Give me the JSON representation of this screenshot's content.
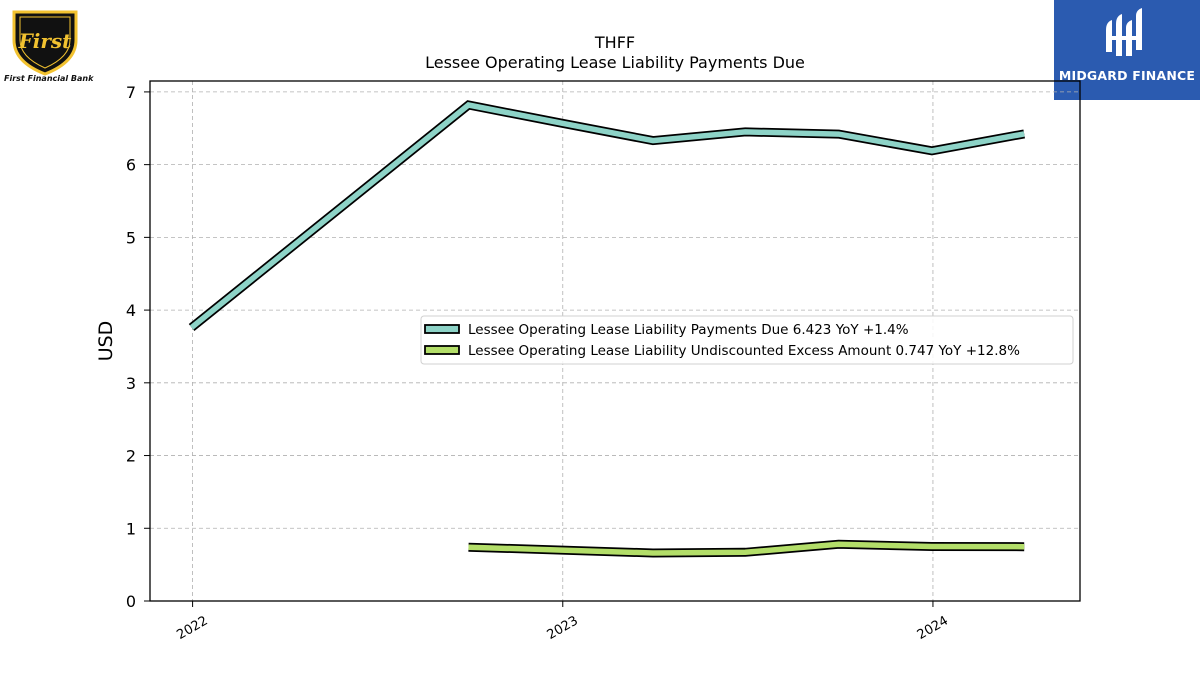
{
  "logos": {
    "left": {
      "script": "First",
      "caption": "First Financial Bank"
    },
    "right": {
      "name": "MIDGARD FINANCE"
    }
  },
  "colors": {
    "series_payments": "#8dd3c7",
    "series_excess": "#b3de69",
    "midgard_bg": "#2b5bb0",
    "shield_gold": "#f2c230",
    "shield_black": "#111111"
  },
  "chart_data": {
    "type": "line",
    "title": "THFF",
    "subtitle": "Lessee Operating Lease Liability Payments Due",
    "ylabel": "USD",
    "xlabel": "",
    "ylim": [
      0,
      7.15
    ],
    "yticks": [
      0,
      1,
      2,
      3,
      4,
      5,
      6,
      7
    ],
    "xlim": [
      "2021-11-20",
      "2024-05-25"
    ],
    "xticks": [
      {
        "date": "2022-01-01",
        "label": "2022"
      },
      {
        "date": "2023-01-01",
        "label": "2023"
      },
      {
        "date": "2024-01-01",
        "label": "2024"
      }
    ],
    "grid": true,
    "legend_position": "center-right",
    "series": [
      {
        "name": "Lessee Operating Lease Liability Payments Due",
        "legend_label": "Lessee Operating Lease Liability Payments Due  6.423 YoY +1.4%",
        "color": "#8dd3c7",
        "points": [
          {
            "x": "2021-12-31",
            "y": 3.76
          },
          {
            "x": "2022-09-30",
            "y": 6.82
          },
          {
            "x": "2022-12-31",
            "y": 6.57
          },
          {
            "x": "2023-03-31",
            "y": 6.33
          },
          {
            "x": "2023-06-30",
            "y": 6.45
          },
          {
            "x": "2023-09-30",
            "y": 6.42
          },
          {
            "x": "2023-12-31",
            "y": 6.19
          },
          {
            "x": "2024-03-31",
            "y": 6.423
          }
        ]
      },
      {
        "name": "Lessee Operating Lease Liability Undiscounted Excess Amount",
        "legend_label": "Lessee Operating Lease Liability Undiscounted Excess Amount  0.747 YoY +12.8%",
        "color": "#b3de69",
        "points": [
          {
            "x": "2022-09-30",
            "y": 0.74
          },
          {
            "x": "2022-12-31",
            "y": 0.7
          },
          {
            "x": "2023-03-31",
            "y": 0.66
          },
          {
            "x": "2023-06-30",
            "y": 0.67
          },
          {
            "x": "2023-09-30",
            "y": 0.78
          },
          {
            "x": "2023-12-31",
            "y": 0.75
          },
          {
            "x": "2024-03-31",
            "y": 0.747
          }
        ]
      }
    ]
  }
}
